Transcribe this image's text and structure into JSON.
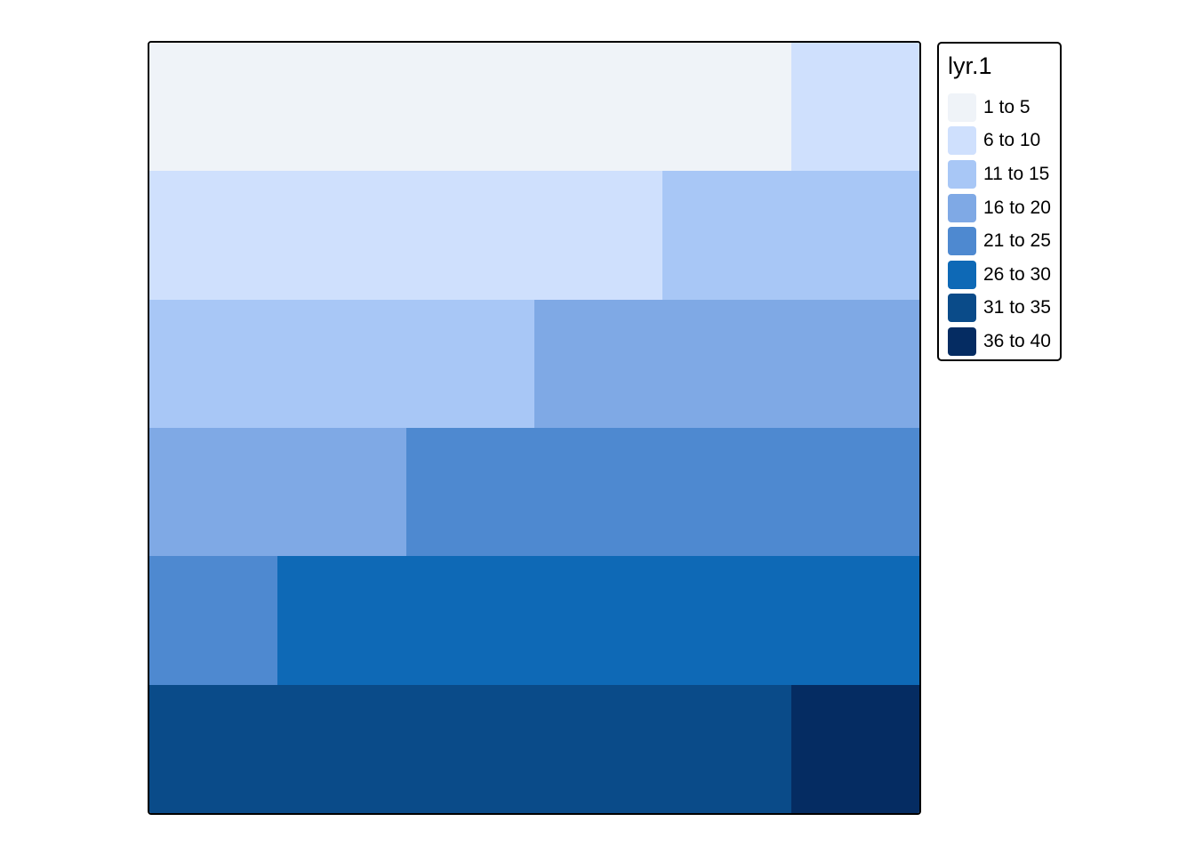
{
  "legend": {
    "title": "lyr.1",
    "classes": [
      {
        "label": "1 to 5",
        "color": "#eff3f8"
      },
      {
        "label": "6 to 10",
        "color": "#cfe0fd"
      },
      {
        "label": "11 to 15",
        "color": "#a8c7f6"
      },
      {
        "label": "16 to 20",
        "color": "#7fa9e5"
      },
      {
        "label": "21 to 25",
        "color": "#4e89d0"
      },
      {
        "label": "26 to 30",
        "color": "#0e69b6"
      },
      {
        "label": "31 to 35",
        "color": "#0a4b89"
      },
      {
        "label": "36 to 40",
        "color": "#052c62"
      }
    ]
  },
  "raster": {
    "rows": 6,
    "cols": 6,
    "class_index": [
      [
        0,
        0,
        0,
        0,
        0,
        1
      ],
      [
        1,
        1,
        1,
        1,
        2,
        2
      ],
      [
        2,
        2,
        2,
        3,
        3,
        3
      ],
      [
        3,
        3,
        4,
        4,
        4,
        4
      ],
      [
        4,
        5,
        5,
        5,
        5,
        5
      ],
      [
        6,
        6,
        6,
        6,
        6,
        7
      ]
    ]
  }
}
